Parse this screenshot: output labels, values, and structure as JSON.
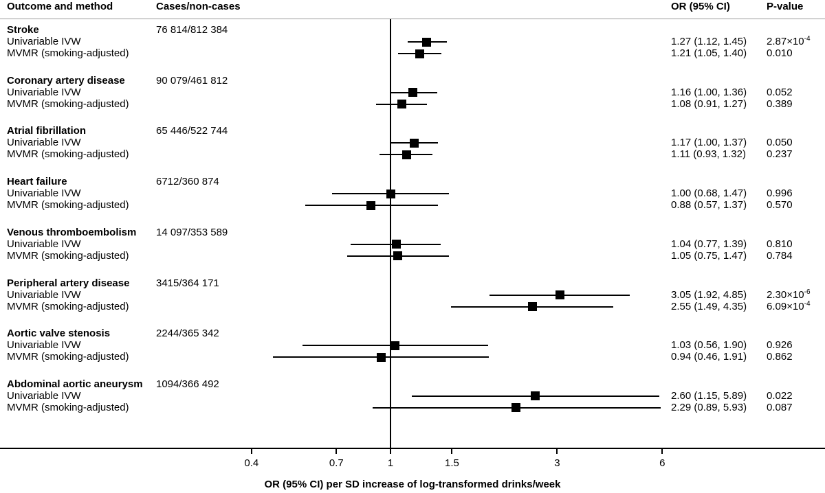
{
  "figure": {
    "columns": {
      "outcome": "Outcome and method",
      "cases": "Cases/non-cases",
      "or": "OR (95% CI)",
      "p": "P-value"
    }
  },
  "chart_data": {
    "type": "forest",
    "xlabel": "OR (95% CI) per SD increase of log-transformed drinks/week",
    "x_scale": "log",
    "x_ticks": [
      0.4,
      0.7,
      1,
      1.5,
      3,
      6
    ],
    "x_domain": [
      0.3,
      8.5
    ],
    "reference_line": 1,
    "methods": [
      "Univariable IVW",
      "MVMR (smoking-adjusted)"
    ],
    "groups": [
      {
        "outcome": "Stroke",
        "cases": "76 814/812 384",
        "rows": [
          {
            "method": "Univariable IVW",
            "or": 1.27,
            "ci": [
              1.12,
              1.45
            ],
            "or_text": "1.27 (1.12, 1.45)",
            "p": "2.87×10",
            "p_exp": "-4"
          },
          {
            "method": "MVMR (smoking-adjusted)",
            "or": 1.21,
            "ci": [
              1.05,
              1.4
            ],
            "or_text": "1.21 (1.05, 1.40)",
            "p": "0.010"
          }
        ]
      },
      {
        "outcome": "Coronary artery disease",
        "cases": "90 079/461 812",
        "rows": [
          {
            "method": "Univariable IVW",
            "or": 1.16,
            "ci": [
              1.0,
              1.36
            ],
            "or_text": "1.16 (1.00, 1.36)",
            "p": "0.052"
          },
          {
            "method": "MVMR (smoking-adjusted)",
            "or": 1.08,
            "ci": [
              0.91,
              1.27
            ],
            "or_text": "1.08 (0.91, 1.27)",
            "p": "0.389"
          }
        ]
      },
      {
        "outcome": "Atrial fibrillation",
        "cases": "65 446/522 744",
        "rows": [
          {
            "method": "Univariable IVW",
            "or": 1.17,
            "ci": [
              1.0,
              1.37
            ],
            "or_text": "1.17 (1.00, 1.37)",
            "p": "0.050"
          },
          {
            "method": "MVMR (smoking-adjusted)",
            "or": 1.11,
            "ci": [
              0.93,
              1.32
            ],
            "or_text": "1.11 (0.93, 1.32)",
            "p": "0.237"
          }
        ]
      },
      {
        "outcome": "Heart failure",
        "cases": "6712/360 874",
        "rows": [
          {
            "method": "Univariable IVW",
            "or": 1.0,
            "ci": [
              0.68,
              1.47
            ],
            "or_text": "1.00 (0.68, 1.47)",
            "p": "0.996"
          },
          {
            "method": "MVMR (smoking-adjusted)",
            "or": 0.88,
            "ci": [
              0.57,
              1.37
            ],
            "or_text": "0.88 (0.57, 1.37)",
            "p": "0.570"
          }
        ]
      },
      {
        "outcome": "Venous thromboembolism",
        "cases": "14 097/353 589",
        "rows": [
          {
            "method": "Univariable IVW",
            "or": 1.04,
            "ci": [
              0.77,
              1.39
            ],
            "or_text": "1.04 (0.77, 1.39)",
            "p": "0.810"
          },
          {
            "method": "MVMR (smoking-adjusted)",
            "or": 1.05,
            "ci": [
              0.75,
              1.47
            ],
            "or_text": "1.05 (0.75, 1.47)",
            "p": "0.784"
          }
        ]
      },
      {
        "outcome": "Peripheral artery disease",
        "cases": "3415/364 171",
        "rows": [
          {
            "method": "Univariable IVW",
            "or": 3.05,
            "ci": [
              1.92,
              4.85
            ],
            "or_text": "3.05 (1.92, 4.85)",
            "p": "2.30×10",
            "p_exp": "-6"
          },
          {
            "method": "MVMR (smoking-adjusted)",
            "or": 2.55,
            "ci": [
              1.49,
              4.35
            ],
            "or_text": "2.55 (1.49, 4.35)",
            "p": "6.09×10",
            "p_exp": "-4"
          }
        ]
      },
      {
        "outcome": "Aortic valve stenosis",
        "cases": "2244/365 342",
        "rows": [
          {
            "method": "Univariable IVW",
            "or": 1.03,
            "ci": [
              0.56,
              1.9
            ],
            "or_text": "1.03 (0.56, 1.90)",
            "p": "0.926"
          },
          {
            "method": "MVMR (smoking-adjusted)",
            "or": 0.94,
            "ci": [
              0.46,
              1.91
            ],
            "or_text": "0.94 (0.46, 1.91)",
            "p": "0.862"
          }
        ]
      },
      {
        "outcome": "Abdominal aortic aneurysm",
        "cases": "1094/366 492",
        "rows": [
          {
            "method": "Univariable IVW",
            "or": 2.6,
            "ci": [
              1.15,
              5.89
            ],
            "or_text": "2.60 (1.15, 5.89)",
            "p": "0.022"
          },
          {
            "method": "MVMR (smoking-adjusted)",
            "or": 2.29,
            "ci": [
              0.89,
              5.93
            ],
            "or_text": "2.29 (0.89, 5.93)",
            "p": "0.087"
          }
        ]
      }
    ],
    "colors": {
      "marker": "#000000",
      "ci_line": "#000000",
      "header_rule": "#999999"
    }
  }
}
